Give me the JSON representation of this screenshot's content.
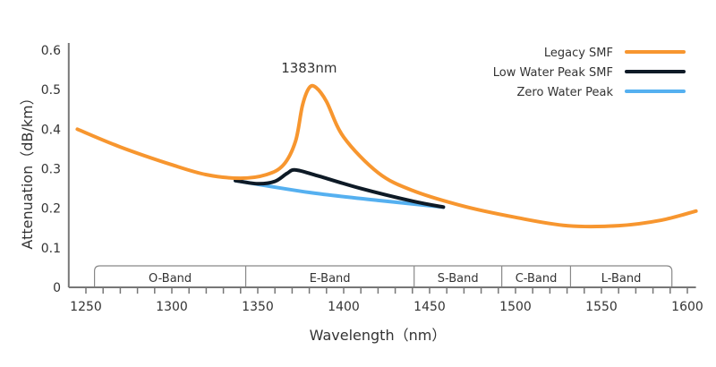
{
  "chart_data": {
    "type": "line",
    "xlabel": "Wavelength（nm）",
    "ylabel": "Attenuation（dB/km）",
    "xlim": [
      1240,
      1605
    ],
    "ylim": [
      0,
      0.6
    ],
    "xticks": [
      1250,
      1300,
      1350,
      1400,
      1450,
      1500,
      1550,
      1600
    ],
    "yticks": [
      "0",
      "0.1",
      "0.2",
      "0.3",
      "0.4",
      "0.5",
      "0.6"
    ],
    "grid": false,
    "legend_position": "top-right",
    "annotation": {
      "text": "1383nm",
      "x": 1383,
      "y": 0.51
    },
    "bands": [
      {
        "name": "O-Band",
        "start": 1255,
        "end": 1343
      },
      {
        "name": "E-Band",
        "start": 1343,
        "end": 1441
      },
      {
        "name": "S-Band",
        "start": 1441,
        "end": 1492
      },
      {
        "name": "C-Band",
        "start": 1492,
        "end": 1532
      },
      {
        "name": "L-Band",
        "start": 1532,
        "end": 1591
      }
    ],
    "series": [
      {
        "name": "Legacy SMF",
        "color": "#f7962f",
        "points": [
          [
            1245,
            0.4
          ],
          [
            1270,
            0.355
          ],
          [
            1300,
            0.31
          ],
          [
            1320,
            0.285
          ],
          [
            1340,
            0.276
          ],
          [
            1355,
            0.285
          ],
          [
            1365,
            0.31
          ],
          [
            1372,
            0.37
          ],
          [
            1376,
            0.46
          ],
          [
            1380,
            0.505
          ],
          [
            1384,
            0.505
          ],
          [
            1390,
            0.47
          ],
          [
            1400,
            0.38
          ],
          [
            1420,
            0.29
          ],
          [
            1440,
            0.245
          ],
          [
            1470,
            0.205
          ],
          [
            1500,
            0.177
          ],
          [
            1530,
            0.156
          ],
          [
            1560,
            0.156
          ],
          [
            1585,
            0.17
          ],
          [
            1605,
            0.193
          ]
        ]
      },
      {
        "name": "Low Water Peak SMF",
        "color": "#0e1a26",
        "points": [
          [
            1337,
            0.27
          ],
          [
            1350,
            0.262
          ],
          [
            1360,
            0.268
          ],
          [
            1367,
            0.288
          ],
          [
            1372,
            0.297
          ],
          [
            1385,
            0.282
          ],
          [
            1410,
            0.25
          ],
          [
            1440,
            0.218
          ],
          [
            1458,
            0.203
          ]
        ]
      },
      {
        "name": "Zero Water Peak",
        "color": "#55b0f0",
        "points": [
          [
            1337,
            0.27
          ],
          [
            1380,
            0.24
          ],
          [
            1420,
            0.22
          ],
          [
            1458,
            0.203
          ]
        ]
      }
    ]
  }
}
